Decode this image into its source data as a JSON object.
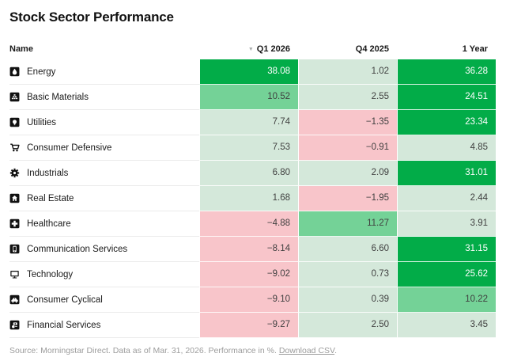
{
  "page": {
    "title": "Stock Sector Performance"
  },
  "table": {
    "name_header": "Name",
    "sorted_column": "Q1 2026",
    "sort_direction": "descending",
    "sort_icon": "sort-desc-triangle-icon"
  },
  "chart_data": {
    "type": "heatmap",
    "title": "Stock Sector Performance",
    "columns": [
      "Q1 2026",
      "Q4 2025",
      "1 Year"
    ],
    "value_unit": "%",
    "rows": [
      {
        "sector": "Energy",
        "icon": "energy-icon",
        "values": [
          38.08,
          1.02,
          36.28
        ]
      },
      {
        "sector": "Basic Materials",
        "icon": "basic-materials-icon",
        "values": [
          10.52,
          2.55,
          24.51
        ]
      },
      {
        "sector": "Utilities",
        "icon": "utilities-icon",
        "values": [
          7.74,
          -1.35,
          23.34
        ]
      },
      {
        "sector": "Consumer Defensive",
        "icon": "consumer-defensive-icon",
        "values": [
          7.53,
          -0.91,
          4.85
        ]
      },
      {
        "sector": "Industrials",
        "icon": "industrials-icon",
        "values": [
          6.8,
          2.09,
          31.01
        ]
      },
      {
        "sector": "Real Estate",
        "icon": "real-estate-icon",
        "values": [
          1.68,
          -1.95,
          2.44
        ]
      },
      {
        "sector": "Healthcare",
        "icon": "healthcare-icon",
        "values": [
          -4.88,
          11.27,
          3.91
        ]
      },
      {
        "sector": "Communication Services",
        "icon": "communication-services-icon",
        "values": [
          -8.14,
          6.6,
          31.15
        ]
      },
      {
        "sector": "Technology",
        "icon": "technology-icon",
        "values": [
          -9.02,
          0.73,
          25.62
        ]
      },
      {
        "sector": "Consumer Cyclical",
        "icon": "consumer-cyclical-icon",
        "values": [
          -9.1,
          0.39,
          10.22
        ]
      },
      {
        "sector": "Financial Services",
        "icon": "financial-services-icon",
        "values": [
          -9.27,
          2.5,
          3.45
        ]
      }
    ],
    "colors": {
      "strong_positive": "#02ac48",
      "medium_positive": "#74d297",
      "weak_positive": "#d4e8da",
      "negative": "#f8c5ca",
      "text_on_strong": "#ffffff",
      "text_dark": "#3f3f3f"
    },
    "color_rule": "value<0 negative pink; 0<=value<10 weak green; 10<=value<20 medium green; value>=20 strong green",
    "legend_position": "none",
    "grid": "off"
  },
  "footer": {
    "source_text": "Source: Morningstar Direct. Data as of Mar. 31, 2026. Performance in %. ",
    "download_link": "Download CSV",
    "after_link": "."
  }
}
